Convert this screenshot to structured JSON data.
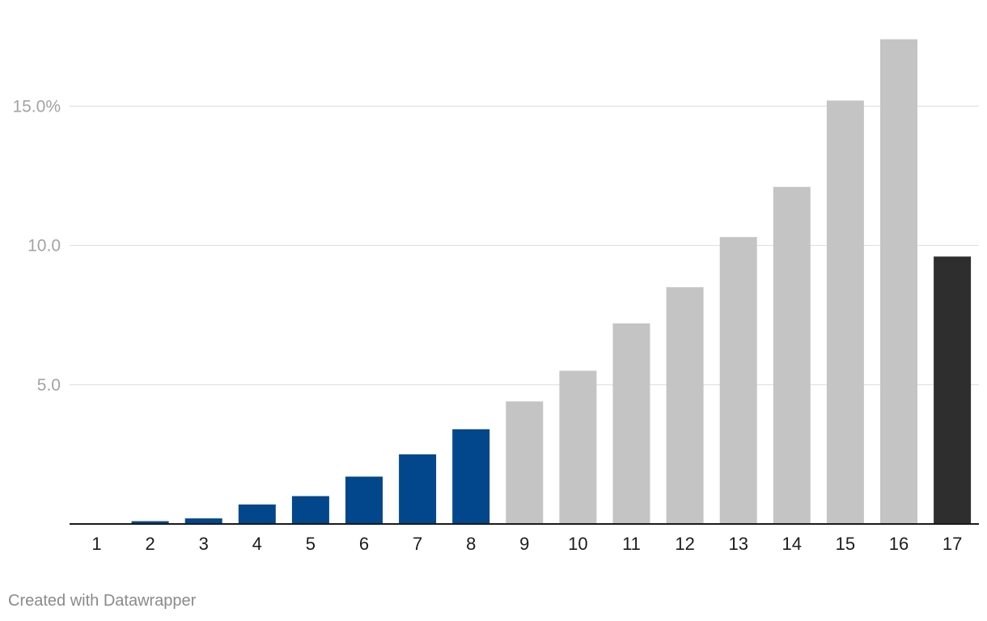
{
  "chart_data": {
    "type": "bar",
    "title": "",
    "xlabel": "",
    "ylabel": "",
    "categories": [
      "1",
      "2",
      "3",
      "4",
      "5",
      "6",
      "7",
      "8",
      "9",
      "10",
      "11",
      "12",
      "13",
      "14",
      "15",
      "16",
      "17"
    ],
    "values": [
      0.0,
      0.1,
      0.2,
      0.7,
      1.0,
      1.7,
      2.5,
      3.4,
      4.4,
      5.5,
      7.2,
      8.5,
      10.3,
      12.1,
      15.2,
      17.4,
      9.6
    ],
    "groups": [
      "blue",
      "blue",
      "blue",
      "blue",
      "blue",
      "blue",
      "blue",
      "blue",
      "grey",
      "grey",
      "grey",
      "grey",
      "grey",
      "grey",
      "grey",
      "grey",
      "dark"
    ],
    "ylim": [
      0,
      18
    ],
    "yticks": [
      5,
      10,
      15
    ],
    "ytick_labels": [
      "5.0",
      "10.0",
      "15.0%"
    ],
    "grid": true,
    "colors": {
      "blue": "#02468b",
      "grey": "#c4c4c4",
      "dark": "#2e2e2e"
    }
  },
  "footer": {
    "credit": "Created with Datawrapper"
  }
}
